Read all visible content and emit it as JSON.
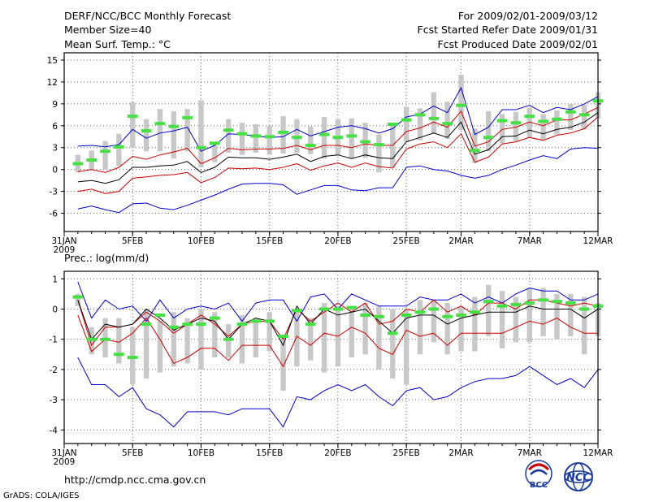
{
  "header": {
    "title": "DERF/NCC/BCC Monthly Forecast",
    "member_size": "Member Size=40",
    "period": "For 2009/02/01-2009/03/12",
    "fcst_started": "Fcst Started Refer Date 2009/01/31",
    "fcst_produced": "Fcst Produced Date 2009/02/01"
  },
  "footer": {
    "url": "http://cmdp.ncc.cma.gov.cn",
    "grads": "GrADS: COLA/IGES",
    "logo_bcc": "BCC",
    "logo_ncc": "NCC"
  },
  "colors": {
    "extreme": "#0000cc",
    "spread": "#cc0000",
    "mean": "#000000",
    "box": "#c8c8c8",
    "obs": "#44e044"
  },
  "chart_data": [
    {
      "type": "line",
      "title": "Mean Surf. Temp.: °C",
      "xlabel": "",
      "ylabel": "",
      "ylim": [
        -8.5,
        16
      ],
      "yticks": [
        -6,
        -3,
        0,
        3,
        6,
        9,
        12,
        15
      ],
      "xticks": [
        {
          "day": 0,
          "label": "31JAN",
          "sub": "2009"
        },
        {
          "day": 5,
          "label": "5FEB"
        },
        {
          "day": 10,
          "label": "10FEB"
        },
        {
          "day": 15,
          "label": "15FEB"
        },
        {
          "day": 20,
          "label": "20FEB"
        },
        {
          "day": 25,
          "label": "25FEB"
        },
        {
          "day": 29,
          "label": "2MAR"
        },
        {
          "day": 34,
          "label": "7MAR"
        },
        {
          "day": 39,
          "label": "12MAR"
        }
      ],
      "x_days": [
        1,
        2,
        3,
        4,
        5,
        6,
        7,
        8,
        9,
        10,
        11,
        12,
        13,
        14,
        15,
        16,
        17,
        18,
        19,
        20,
        21,
        22,
        23,
        24,
        25,
        26,
        27,
        28,
        29,
        30,
        31,
        32,
        33,
        34,
        35,
        36,
        37,
        38,
        39
      ],
      "series": [
        {
          "name": "max",
          "role": "extreme",
          "values": [
            3.2,
            3.3,
            3.1,
            3.4,
            5.5,
            4.3,
            5.0,
            5.3,
            5.8,
            2.5,
            3.3,
            4.9,
            4.8,
            4.6,
            4.4,
            4.5,
            5.5,
            4.6,
            5.2,
            5.8,
            6.0,
            5.6,
            5.0,
            5.6,
            7.2,
            7.6,
            8.7,
            7.8,
            11.2,
            4.8,
            5.8,
            8.2,
            8.2,
            8.8,
            7.8,
            8.5,
            8.2,
            9.0,
            10.0
          ]
        },
        {
          "name": "upper",
          "role": "spread",
          "values": [
            -0.3,
            0.0,
            -0.4,
            0.3,
            1.8,
            1.4,
            2.0,
            2.4,
            2.9,
            0.8,
            1.6,
            2.9,
            2.7,
            2.8,
            2.8,
            2.9,
            3.3,
            2.7,
            3.3,
            3.3,
            3.0,
            3.5,
            3.3,
            3.3,
            5.2,
            5.7,
            6.5,
            5.8,
            8.0,
            3.2,
            3.8,
            5.5,
            5.8,
            6.5,
            6.0,
            6.8,
            6.8,
            7.6,
            8.5
          ]
        },
        {
          "name": "mean",
          "role": "mean",
          "values": [
            -1.7,
            -1.5,
            -1.9,
            -1.4,
            0.3,
            0.3,
            0.5,
            0.6,
            1.1,
            -0.4,
            0.3,
            1.7,
            1.6,
            1.6,
            1.4,
            1.7,
            2.1,
            1.1,
            1.8,
            2.0,
            1.5,
            2.0,
            1.6,
            1.5,
            3.8,
            4.4,
            5.0,
            4.4,
            6.5,
            2.1,
            2.7,
            4.5,
            4.6,
            5.4,
            4.9,
            5.5,
            5.8,
            6.5,
            7.8
          ]
        },
        {
          "name": "lower",
          "role": "spread",
          "values": [
            -3.0,
            -2.7,
            -3.3,
            -3.0,
            -1.2,
            -1.0,
            -0.8,
            -0.7,
            -0.4,
            -1.8,
            -1.1,
            0.2,
            0.1,
            0.2,
            0.0,
            0.3,
            0.8,
            -0.1,
            0.5,
            0.9,
            0.3,
            0.9,
            0.4,
            0.2,
            2.8,
            3.5,
            3.8,
            3.0,
            4.9,
            1.0,
            1.7,
            3.5,
            3.8,
            4.4,
            4.0,
            4.7,
            5.0,
            5.6,
            7.2
          ]
        },
        {
          "name": "min",
          "role": "extreme",
          "values": [
            -5.4,
            -5.0,
            -5.5,
            -5.9,
            -4.7,
            -4.6,
            -5.3,
            -5.5,
            -4.9,
            -4.2,
            -3.5,
            -2.7,
            -2.0,
            -1.9,
            -1.9,
            -2.1,
            -3.4,
            -2.8,
            -2.2,
            -2.2,
            -2.8,
            -2.9,
            -2.5,
            -2.5,
            0.3,
            0.5,
            0.0,
            -0.2,
            -0.8,
            -1.2,
            -0.8,
            0.0,
            0.6,
            1.3,
            1.9,
            1.5,
            2.8,
            3.0,
            2.9
          ]
        }
      ],
      "boxes": [
        [
          -0.4,
          2.0
        ],
        [
          -0.1,
          2.6
        ],
        [
          0.0,
          3.9
        ],
        [
          0.5,
          4.9
        ],
        [
          3.0,
          9.2
        ],
        [
          2.5,
          6.9
        ],
        [
          2.5,
          8.3
        ],
        [
          1.5,
          8.0
        ],
        [
          2.5,
          8.3
        ],
        [
          0.3,
          9.5
        ],
        [
          1.0,
          3.8
        ],
        [
          2.3,
          6.9
        ],
        [
          2.0,
          6.4
        ],
        [
          2.3,
          6.2
        ],
        [
          2.0,
          6.0
        ],
        [
          2.2,
          7.3
        ],
        [
          2.3,
          6.9
        ],
        [
          2.1,
          5.9
        ],
        [
          1.5,
          7.2
        ],
        [
          1.9,
          6.9
        ],
        [
          1.5,
          7.0
        ],
        [
          1.6,
          6.4
        ],
        [
          -0.4,
          4.8
        ],
        [
          0.3,
          6.3
        ],
        [
          3.8,
          8.6
        ],
        [
          4.0,
          8.4
        ],
        [
          4.9,
          10.6
        ],
        [
          4.2,
          9.3
        ],
        [
          5.4,
          13.0
        ],
        [
          0.9,
          5.6
        ],
        [
          2.5,
          8.0
        ],
        [
          3.6,
          7.6
        ],
        [
          3.9,
          7.9
        ],
        [
          4.4,
          8.5
        ],
        [
          4.1,
          7.6
        ],
        [
          4.8,
          8.1
        ],
        [
          5.4,
          9.0
        ],
        [
          5.5,
          8.9
        ],
        [
          7.0,
          10.6
        ]
      ],
      "obs": [
        0.8,
        1.3,
        2.5,
        3.1,
        7.3,
        5.3,
        6.3,
        5.9,
        7.1,
        3.0,
        3.6,
        5.4,
        4.9,
        4.6,
        4.5,
        5.1,
        4.4,
        3.3,
        4.8,
        4.4,
        4.6,
        3.8,
        3.4,
        6.2,
        6.8,
        7.5,
        7.0,
        6.3,
        8.8,
        2.6,
        4.4,
        6.7,
        6.4,
        7.3,
        6.6,
        6.9,
        7.9,
        7.5,
        9.4
      ]
    },
    {
      "type": "line",
      "title": "Prec.: log(mm/d)",
      "xlabel": "",
      "ylabel": "",
      "ylim": [
        -4.45,
        1.25
      ],
      "yticks": [
        -4,
        -3,
        -2,
        -1,
        0,
        1
      ],
      "xticks": [
        {
          "day": 0,
          "label": "31JAN",
          "sub": "2009"
        },
        {
          "day": 5,
          "label": "5FEB"
        },
        {
          "day": 10,
          "label": "10FEB"
        },
        {
          "day": 15,
          "label": "15FEB"
        },
        {
          "day": 20,
          "label": "20FEB"
        },
        {
          "day": 25,
          "label": "25FEB"
        },
        {
          "day": 29,
          "label": "2MAR"
        },
        {
          "day": 34,
          "label": "7MAR"
        },
        {
          "day": 39,
          "label": "12MAR"
        }
      ],
      "x_days": [
        1,
        2,
        3,
        4,
        5,
        6,
        7,
        8,
        9,
        10,
        11,
        12,
        13,
        14,
        15,
        16,
        17,
        18,
        19,
        20,
        21,
        22,
        23,
        24,
        25,
        26,
        27,
        28,
        29,
        30,
        31,
        32,
        33,
        34,
        35,
        36,
        37,
        38,
        39
      ],
      "series": [
        {
          "name": "max",
          "role": "extreme",
          "values": [
            0.9,
            -0.3,
            0.3,
            0.0,
            0.1,
            -0.4,
            0.3,
            -0.3,
            0.0,
            0.1,
            0.0,
            0.2,
            -0.4,
            0.2,
            0.3,
            0.3,
            -0.4,
            0.4,
            0.5,
            0.0,
            0.5,
            0.3,
            0.1,
            0.1,
            0.1,
            0.4,
            0.3,
            0.3,
            0.5,
            0.2,
            0.4,
            0.2,
            0.5,
            0.7,
            0.6,
            0.6,
            0.3,
            0.3,
            0.5
          ]
        },
        {
          "name": "upper",
          "role": "spread",
          "values": [
            0.3,
            -1.2,
            -0.6,
            -0.6,
            -0.5,
            -0.1,
            -0.4,
            -0.8,
            -0.5,
            -0.2,
            -0.5,
            -0.9,
            -0.5,
            -0.4,
            -0.4,
            -1.0,
            0.0,
            -0.4,
            -0.1,
            0.2,
            -0.1,
            0.2,
            -0.5,
            -0.4,
            0.0,
            -0.1,
            0.3,
            -0.1,
            0.1,
            -0.2,
            0.2,
            0.2,
            0.0,
            0.3,
            0.3,
            0.2,
            0.1,
            0.2,
            0.1
          ]
        },
        {
          "name": "mean",
          "role": "mean",
          "values": [
            0.3,
            -1.0,
            -0.5,
            -0.6,
            -0.5,
            0.0,
            -0.3,
            -0.7,
            -0.5,
            -0.3,
            -0.4,
            -1.0,
            -0.5,
            -0.3,
            -0.4,
            -1.2,
            0.1,
            -0.5,
            0.0,
            -0.2,
            -0.1,
            0.0,
            -0.4,
            -0.8,
            -0.3,
            -0.2,
            -0.2,
            -0.5,
            -0.3,
            -0.2,
            -0.1,
            -0.1,
            -0.1,
            0.1,
            0.0,
            0.0,
            0.0,
            -0.3,
            0.0
          ]
        },
        {
          "name": "lower",
          "role": "spread",
          "values": [
            -0.2,
            -1.4,
            -1.0,
            -1.1,
            -0.8,
            -0.3,
            -1.0,
            -1.8,
            -1.6,
            -1.3,
            -1.3,
            -1.7,
            -1.2,
            -1.2,
            -1.2,
            -1.9,
            -0.9,
            -1.2,
            -0.8,
            -0.9,
            -0.6,
            -0.8,
            -1.3,
            -1.5,
            -0.7,
            -0.9,
            -0.8,
            -1.2,
            -0.8,
            -0.8,
            -0.8,
            -0.8,
            -0.6,
            -0.4,
            -0.5,
            -0.3,
            -0.6,
            -0.8,
            -0.8
          ]
        },
        {
          "name": "min",
          "role": "extreme",
          "values": [
            -1.6,
            -2.5,
            -2.5,
            -2.9,
            -2.6,
            -3.3,
            -3.5,
            -3.9,
            -3.4,
            -3.4,
            -3.4,
            -3.5,
            -3.3,
            -3.3,
            -3.3,
            -3.9,
            -2.9,
            -3.0,
            -2.7,
            -2.5,
            -2.7,
            -2.5,
            -2.9,
            -3.2,
            -2.7,
            -2.6,
            -3.0,
            -2.9,
            -2.6,
            -2.4,
            -2.3,
            -2.3,
            -2.2,
            -1.9,
            -2.2,
            -2.5,
            -2.3,
            -2.6,
            -2.0
          ]
        },
        {
          "name": "upper2",
          "role": "spread",
          "values": [
            0.6,
            -1.2,
            -1.2,
            -0.6,
            -0.6,
            0.0,
            -0.3,
            -0.6,
            -0.3,
            -0.3,
            -0.4,
            -0.9,
            -0.4,
            -0.4,
            -0.3,
            -1.3,
            0.0,
            -0.3,
            -0.1,
            -0.1,
            0.0,
            -0.1,
            -0.4,
            -0.5,
            -0.2,
            0.0,
            0.2,
            -0.3,
            -0.2,
            0.0,
            0.1,
            0.1,
            0.1,
            0.2,
            0.3,
            0.1,
            0.2,
            0.0,
            0.1
          ]
        }
      ],
      "boxes": [
        [
          0.1,
          0.5
        ],
        [
          -1.5,
          -0.6
        ],
        [
          -1.6,
          -0.3
        ],
        [
          -1.8,
          -0.3
        ],
        [
          -2.5,
          -0.6
        ],
        [
          -2.3,
          0.0
        ],
        [
          -2.1,
          -0.4
        ],
        [
          -1.9,
          -0.1
        ],
        [
          -1.8,
          -0.3
        ],
        [
          -2.0,
          0.0
        ],
        [
          -1.6,
          -0.1
        ],
        [
          -1.6,
          -0.5
        ],
        [
          -1.8,
          -0.2
        ],
        [
          -1.6,
          -0.3
        ],
        [
          -1.4,
          -0.1
        ],
        [
          -2.7,
          -0.9
        ],
        [
          -1.9,
          0.0
        ],
        [
          -1.7,
          -0.3
        ],
        [
          -2.1,
          0.2
        ],
        [
          -1.9,
          0.1
        ],
        [
          -1.6,
          0.1
        ],
        [
          -1.5,
          0.2
        ],
        [
          -2.0,
          0.1
        ],
        [
          -2.3,
          0.0
        ],
        [
          -2.5,
          0.0
        ],
        [
          -1.5,
          0.3
        ],
        [
          -1.1,
          0.3
        ],
        [
          -1.5,
          0.2
        ],
        [
          -1.4,
          0.1
        ],
        [
          -1.4,
          0.4
        ],
        [
          -0.9,
          0.8
        ],
        [
          -1.3,
          0.6
        ],
        [
          -1.1,
          0.4
        ],
        [
          -1.1,
          0.7
        ],
        [
          -0.9,
          0.7
        ],
        [
          -1.0,
          0.5
        ],
        [
          -0.9,
          0.5
        ],
        [
          -1.5,
          0.4
        ],
        [
          -0.9,
          0.2
        ]
      ],
      "obs": [
        0.4,
        -1.0,
        -1.0,
        -1.5,
        -1.6,
        -0.5,
        -0.2,
        -0.6,
        -0.5,
        -0.5,
        -0.3,
        -1.0,
        -0.5,
        -0.4,
        -0.4,
        -0.9,
        -0.05,
        -0.5,
        0.0,
        0.0,
        0.05,
        -0.2,
        -0.25,
        -0.8,
        -0.2,
        -0.1,
        0.0,
        -0.25,
        -0.2,
        -0.1,
        0.25,
        0.1,
        0.15,
        0.2,
        0.3,
        0.25,
        0.2,
        0.0,
        0.1
      ]
    }
  ]
}
